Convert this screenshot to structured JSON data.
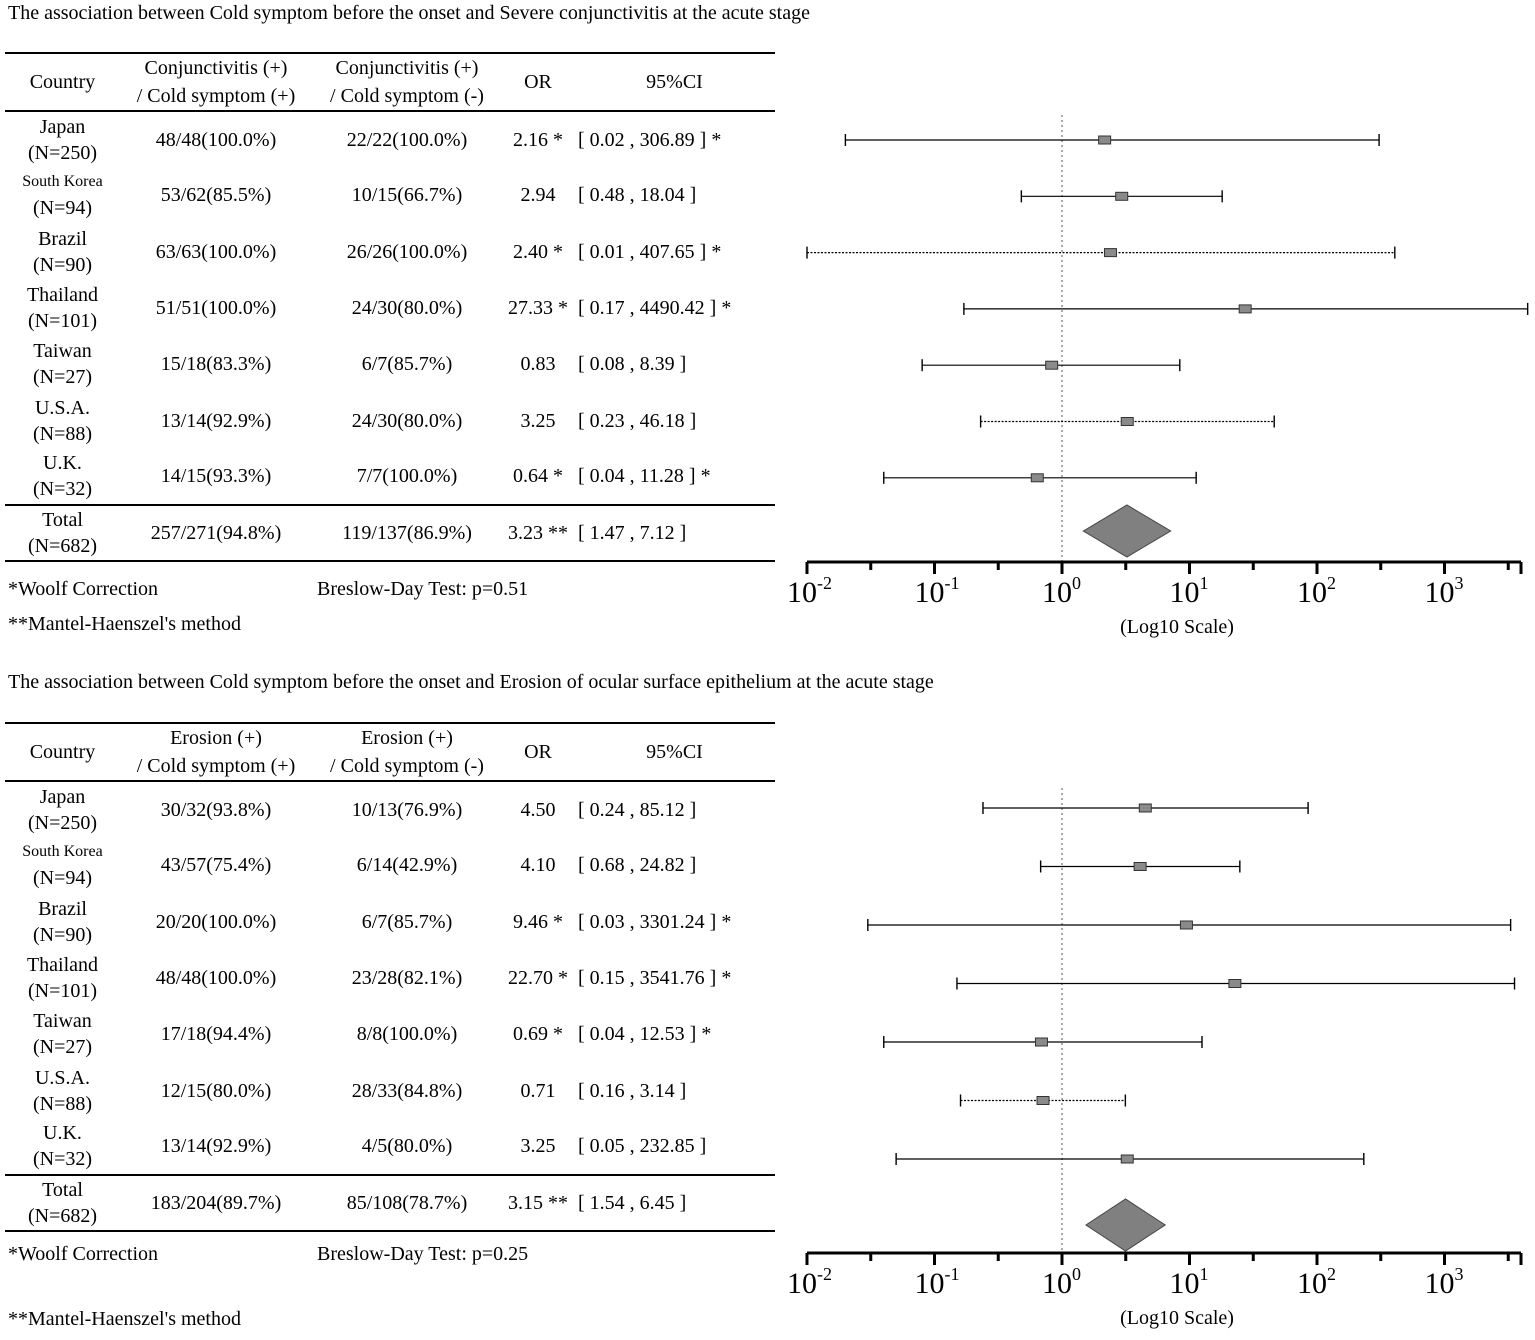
{
  "column_headers": {
    "country": "Country",
    "or": "OR",
    "ci": "95%CI"
  },
  "footnotes": {
    "woolf": "*Woolf Correction",
    "mh": "**Mantel-Haenszel's method"
  },
  "axis": {
    "ticks": [
      "10",
      "10",
      "10",
      "10",
      "10",
      "10"
    ],
    "exponents": [
      "-2",
      "-1",
      "0",
      "1",
      "2",
      "3"
    ],
    "label": "(Log10 Scale)"
  },
  "colors": {
    "marker": "#8a8a8a",
    "diamond": "#808080",
    "line": "#000000"
  },
  "chart_data": [
    {
      "type": "forest",
      "title": "The association between Cold symptom before the onset and Severe conjunctivitis at the acute stage",
      "header_plus": [
        "Conjunctivitis (+)",
        "/ Cold symptom (+)"
      ],
      "header_minus": [
        "Conjunctivitis (+)",
        "/ Cold symptom (-)"
      ],
      "xscale": "log10",
      "xlim_exponent": [
        -2,
        3.6
      ],
      "reference_line": 1,
      "breslow_day": "Breslow-Day Test: p=0.51",
      "rows": [
        {
          "country": "Japan",
          "n": "(N=250)",
          "plus": "48/48(100.0%)",
          "minus": "22/22(100.0%)",
          "or_text": "2.16 *",
          "ci_text": "[ 0.02 , 306.89 ] *",
          "or": 2.16,
          "lo": 0.02,
          "hi": 306.89,
          "dashed": false
        },
        {
          "country": "South Korea",
          "n": "(N=94)",
          "plus": "53/62(85.5%)",
          "minus": "10/15(66.7%)",
          "or_text": "2.94",
          "ci_text": "[ 0.48 , 18.04 ]",
          "or": 2.94,
          "lo": 0.48,
          "hi": 18.04,
          "dashed": false,
          "small": true
        },
        {
          "country": "Brazil",
          "n": "(N=90)",
          "plus": "63/63(100.0%)",
          "minus": "26/26(100.0%)",
          "or_text": "2.40 *",
          "ci_text": "[ 0.01 , 407.65 ] *",
          "or": 2.4,
          "lo": 0.01,
          "hi": 407.65,
          "dashed": true
        },
        {
          "country": "Thailand",
          "n": "(N=101)",
          "plus": "51/51(100.0%)",
          "minus": "24/30(80.0%)",
          "or_text": "27.33 *",
          "ci_text": "[ 0.17 , 4490.42 ] *",
          "or": 27.33,
          "lo": 0.17,
          "hi": 4490.42,
          "dashed": false
        },
        {
          "country": "Taiwan",
          "n": "(N=27)",
          "plus": "15/18(83.3%)",
          "minus": "6/7(85.7%)",
          "or_text": "0.83",
          "ci_text": "[ 0.08 , 8.39 ]",
          "or": 0.83,
          "lo": 0.08,
          "hi": 8.39,
          "dashed": false
        },
        {
          "country": "U.S.A.",
          "n": "(N=88)",
          "plus": "13/14(92.9%)",
          "minus": "24/30(80.0%)",
          "or_text": "3.25",
          "ci_text": "[ 0.23 , 46.18 ]",
          "or": 3.25,
          "lo": 0.23,
          "hi": 46.18,
          "dashed": true
        },
        {
          "country": "U.K.",
          "n": "(N=32)",
          "plus": "14/15(93.3%)",
          "minus": "7/7(100.0%)",
          "or_text": "0.64 *",
          "ci_text": "[ 0.04 , 11.28 ] *",
          "or": 0.64,
          "lo": 0.04,
          "hi": 11.28,
          "dashed": false
        }
      ],
      "total": {
        "country": "Total",
        "n": "(N=682)",
        "plus": "257/271(94.8%)",
        "minus": "119/137(86.9%)",
        "or_text": "3.23 **",
        "ci_text": "[ 1.47 , 7.12 ]",
        "or": 3.23,
        "lo": 1.47,
        "hi": 7.12
      }
    },
    {
      "type": "forest",
      "title": "The association between Cold symptom before the onset and Erosion of ocular surface epithelium at the acute stage",
      "header_plus": [
        "Erosion (+)",
        "/ Cold symptom (+)"
      ],
      "header_minus": [
        "Erosion (+)",
        "/ Cold symptom (-)"
      ],
      "xscale": "log10",
      "xlim_exponent": [
        -2,
        3.6
      ],
      "reference_line": 1,
      "breslow_day": "Breslow-Day Test: p=0.25",
      "rows": [
        {
          "country": "Japan",
          "n": "(N=250)",
          "plus": "30/32(93.8%)",
          "minus": "10/13(76.9%)",
          "or_text": "4.50",
          "ci_text": "[ 0.24 , 85.12 ]",
          "or": 4.5,
          "lo": 0.24,
          "hi": 85.12,
          "dashed": false
        },
        {
          "country": "South Korea",
          "n": "(N=94)",
          "plus": "43/57(75.4%)",
          "minus": "6/14(42.9%)",
          "or_text": "4.10",
          "ci_text": "[ 0.68 , 24.82 ]",
          "or": 4.1,
          "lo": 0.68,
          "hi": 24.82,
          "dashed": false,
          "small": true
        },
        {
          "country": "Brazil",
          "n": "(N=90)",
          "plus": "20/20(100.0%)",
          "minus": "6/7(85.7%)",
          "or_text": "9.46 *",
          "ci_text": "[ 0.03 , 3301.24 ] *",
          "or": 9.46,
          "lo": 0.03,
          "hi": 3301.24,
          "dashed": false
        },
        {
          "country": "Thailand",
          "n": "(N=101)",
          "plus": "48/48(100.0%)",
          "minus": "23/28(82.1%)",
          "or_text": "22.70 *",
          "ci_text": "[ 0.15 , 3541.76 ] *",
          "or": 22.7,
          "lo": 0.15,
          "hi": 3541.76,
          "dashed": false
        },
        {
          "country": "Taiwan",
          "n": "(N=27)",
          "plus": "17/18(94.4%)",
          "minus": "8/8(100.0%)",
          "or_text": "0.69 *",
          "ci_text": "[ 0.04 , 12.53 ] *",
          "or": 0.69,
          "lo": 0.04,
          "hi": 12.53,
          "dashed": false
        },
        {
          "country": "U.S.A.",
          "n": "(N=88)",
          "plus": "12/15(80.0%)",
          "minus": "28/33(84.8%)",
          "or_text": "0.71",
          "ci_text": "[ 0.16 , 3.14 ]",
          "or": 0.71,
          "lo": 0.16,
          "hi": 3.14,
          "dashed": true
        },
        {
          "country": "U.K.",
          "n": "(N=32)",
          "plus": "13/14(92.9%)",
          "minus": "4/5(80.0%)",
          "or_text": "3.25",
          "ci_text": "[ 0.05 , 232.85 ]",
          "or": 3.25,
          "lo": 0.05,
          "hi": 232.85,
          "dashed": false
        }
      ],
      "total": {
        "country": "Total",
        "n": "(N=682)",
        "plus": "183/204(89.7%)",
        "minus": "85/108(78.7%)",
        "or_text": "3.15 **",
        "ci_text": "[ 1.54 , 6.45 ]",
        "or": 3.15,
        "lo": 1.54,
        "hi": 6.45
      }
    }
  ]
}
